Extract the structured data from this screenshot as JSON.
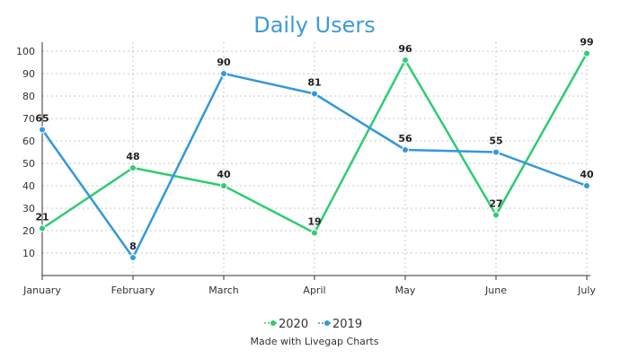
{
  "chart_data": {
    "type": "line",
    "title": "Daily Users",
    "xlabel": "",
    "ylabel": "",
    "categories": [
      "January",
      "February",
      "March",
      "April",
      "May",
      "June",
      "July"
    ],
    "yticks": [
      10,
      20,
      30,
      40,
      50,
      60,
      70,
      80,
      90,
      100
    ],
    "ylim": [
      0,
      100
    ],
    "grid": true,
    "legend_position": "bottom",
    "series": [
      {
        "name": "2020",
        "color": "#2ecc71",
        "values": [
          21,
          48,
          40,
          19,
          96,
          27,
          99
        ]
      },
      {
        "name": "2019",
        "color": "#3498db",
        "values": [
          65,
          8,
          90,
          81,
          56,
          55,
          40
        ]
      }
    ]
  },
  "footer": {
    "credit": "Made with Livegap Charts"
  }
}
